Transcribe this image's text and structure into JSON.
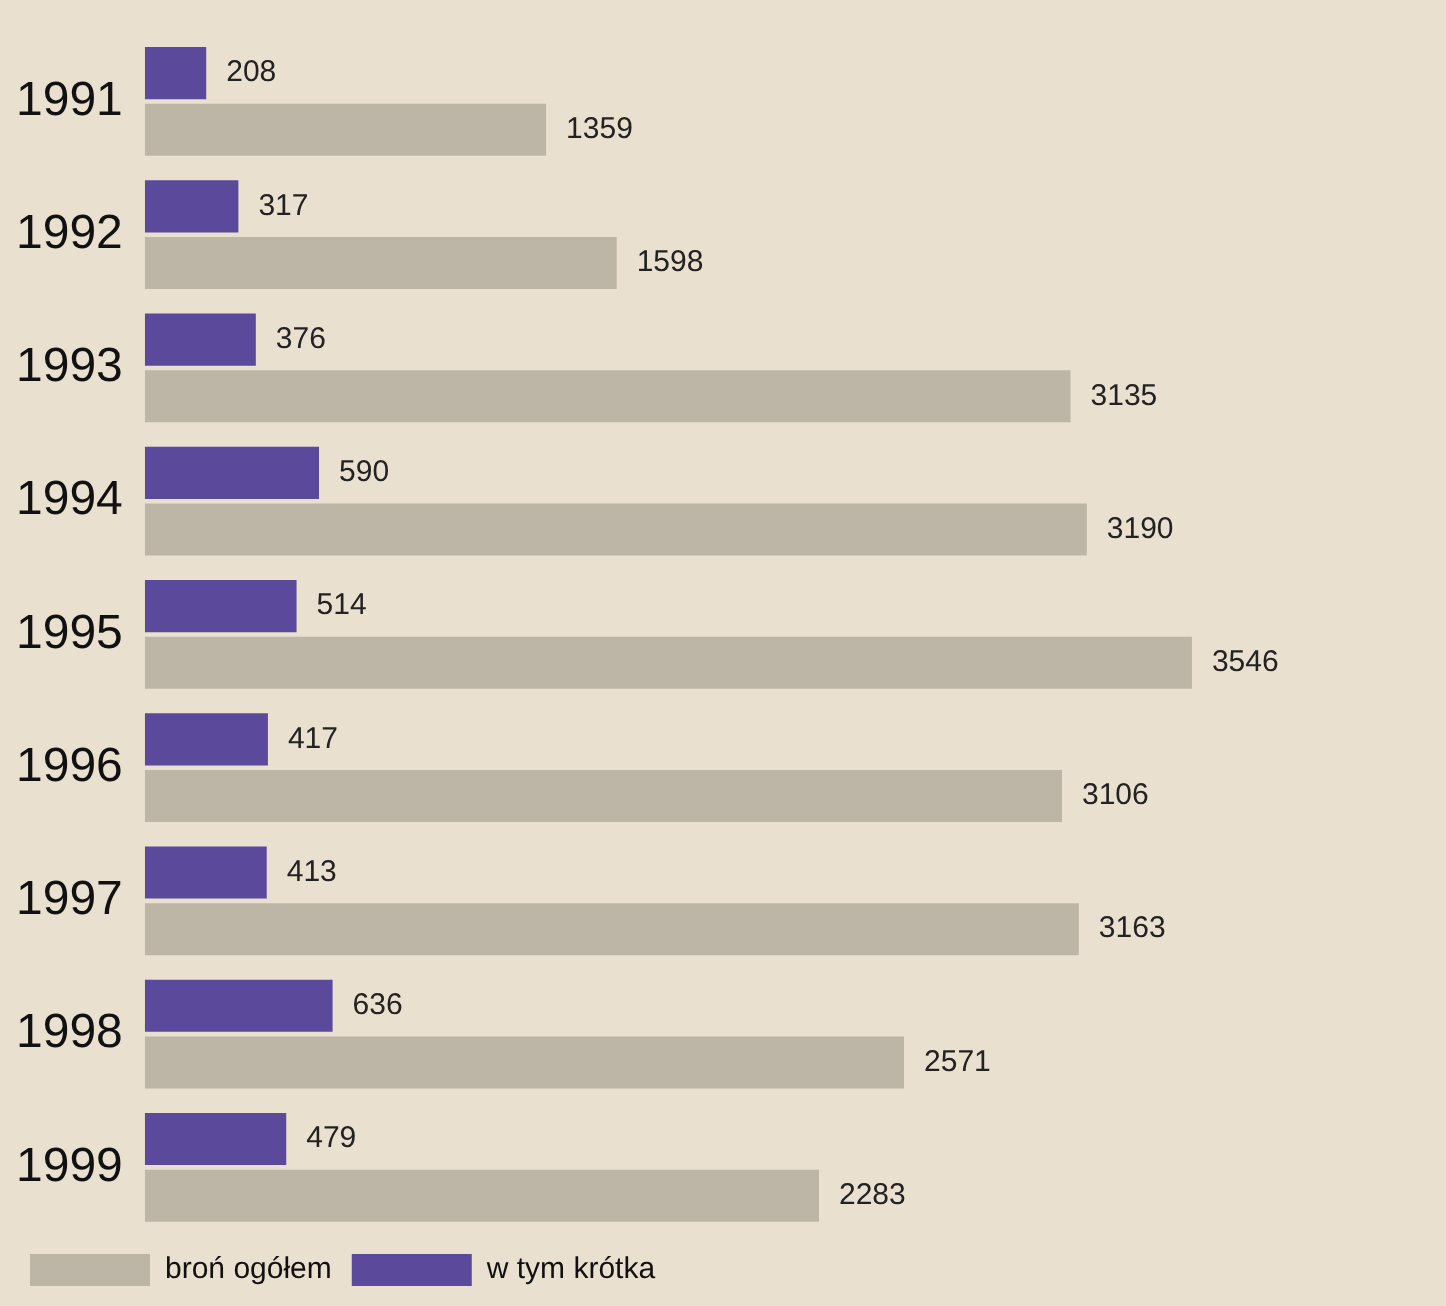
{
  "chart_data": {
    "type": "bar",
    "orientation": "horizontal",
    "categories": [
      "1991",
      "1992",
      "1993",
      "1994",
      "1995",
      "1996",
      "1997",
      "1998",
      "1999"
    ],
    "series": [
      {
        "name": "w tym krótka",
        "color": "#5b4a9c",
        "values": [
          208,
          317,
          376,
          590,
          514,
          417,
          413,
          636,
          479
        ]
      },
      {
        "name": "broń ogółem",
        "color": "#bdb6a6",
        "values": [
          1359,
          1598,
          3135,
          3190,
          3546,
          3106,
          3163,
          2571,
          2283
        ]
      }
    ],
    "data_labels": true,
    "legend": "bottom left"
  }
}
